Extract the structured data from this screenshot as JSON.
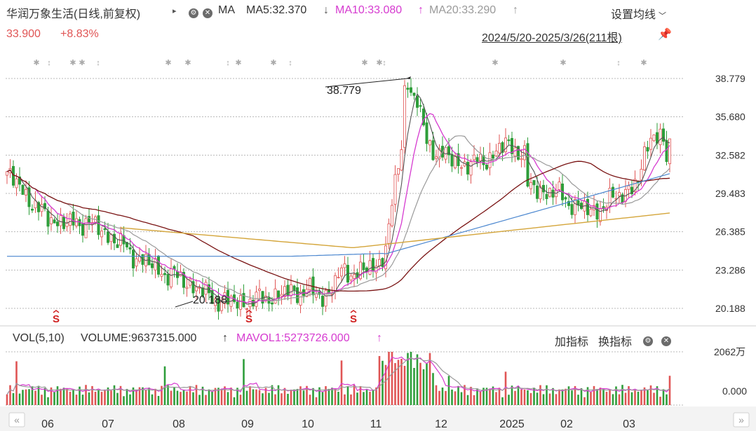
{
  "header": {
    "stock_name": "华润万象生活(日线,前复权)",
    "ma_label": "MA",
    "ma5": "MA5:32.370",
    "ma10": "MA10:33.080",
    "ma20": "MA20:33.290",
    "settings": "设置均线",
    "price": "33.900",
    "change": "+8.83%",
    "range": "2024/5/20-2025/3/26(211根)"
  },
  "volume_header": {
    "label": "VOL(5,10)",
    "volume": "VOLUME:9637315.000",
    "mavol1": "MAVOL1:5273726.000",
    "add_indicator": "加指标",
    "switch_indicator": "换指标"
  },
  "colors": {
    "up": "#e05555",
    "down": "#2e9e3a",
    "ma5": "#555555",
    "ma10": "#d63bd0",
    "ma20": "#9a9a9a",
    "ma60": "#7a1414",
    "ma120": "#4a86cf",
    "ma250": "#d4a53a",
    "signal": "#d02020"
  },
  "chart_data": {
    "type": "candlestick",
    "y_ticks": [
      "38.779",
      "35.680",
      "32.582",
      "29.483",
      "26.385",
      "23.286",
      "20.188"
    ],
    "ylim": [
      20.188,
      38.779
    ],
    "x_ticks": [
      "06",
      "07",
      "08",
      "09",
      "10",
      "11",
      "12",
      "2025",
      "02",
      "03"
    ],
    "annotations": {
      "high": "38.779",
      "low": "20.188",
      "signal": "S"
    },
    "volume_ticks": [
      "2062万",
      "0.000"
    ],
    "bars": 211
  }
}
